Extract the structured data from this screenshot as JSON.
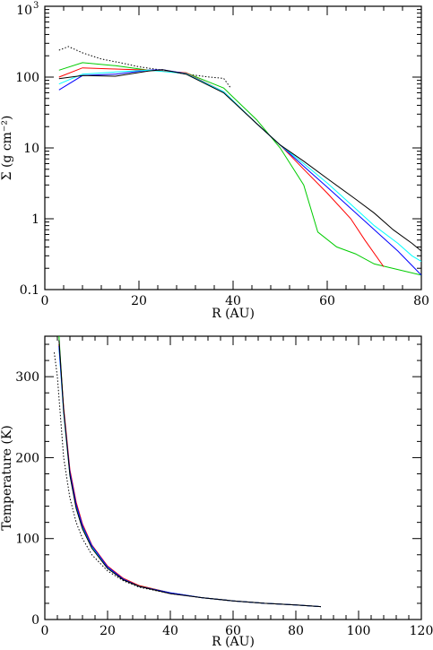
{
  "chart_data": [
    {
      "type": "line",
      "xlabel": "R (AU)",
      "ylabel": "Σ (g cm⁻²)",
      "xlim": [
        0,
        80
      ],
      "ylim": [
        0.1,
        1000
      ],
      "yscale": "log",
      "x_ticks": [
        0,
        20,
        40,
        60,
        80
      ],
      "y_ticks": [
        {
          "value": 0.1,
          "label": "0.1"
        },
        {
          "value": 1,
          "label": "1"
        },
        {
          "value": 10,
          "label": "10"
        },
        {
          "value": 100,
          "label": "100"
        },
        {
          "value": 1000,
          "label": "10",
          "sup": "3"
        }
      ],
      "series": [
        {
          "color": "#000000",
          "dashed": true,
          "x": [
            3,
            5,
            8,
            12,
            16,
            20,
            25,
            30,
            35,
            38,
            39.5
          ],
          "y": [
            240,
            270,
            220,
            180,
            160,
            140,
            125,
            110,
            100,
            96,
            70
          ]
        },
        {
          "color": "#00cc00",
          "x": [
            3,
            8,
            15,
            22,
            30,
            38,
            45,
            50,
            55,
            58,
            62,
            66,
            70,
            80
          ],
          "y": [
            125,
            160,
            145,
            125,
            115,
            70,
            25,
            10,
            3,
            0.65,
            0.4,
            0.32,
            0.23,
            0.16
          ]
        },
        {
          "color": "#ff0000",
          "x": [
            3,
            8,
            15,
            22,
            30,
            38,
            45,
            50,
            55,
            60,
            65,
            68,
            72
          ],
          "y": [
            100,
            135,
            130,
            125,
            115,
            62,
            22,
            11,
            5,
            2.3,
            1.0,
            0.5,
            0.21
          ]
        },
        {
          "color": "#0000ff",
          "x": [
            3,
            8,
            15,
            22,
            25,
            30,
            38,
            45,
            50,
            55,
            60,
            65,
            70,
            75,
            80
          ],
          "y": [
            66,
            105,
            110,
            125,
            127,
            112,
            62,
            22,
            11,
            5.5,
            2.8,
            1.4,
            0.7,
            0.35,
            0.16
          ]
        },
        {
          "color": "#00ffff",
          "x": [
            3,
            8,
            15,
            22,
            30,
            38,
            45,
            50,
            55,
            60,
            65,
            70,
            75,
            78,
            80
          ],
          "y": [
            80,
            110,
            118,
            125,
            112,
            62,
            22,
            11,
            6,
            3.2,
            1.6,
            0.8,
            0.45,
            0.3,
            0.25
          ]
        },
        {
          "color": "#000000",
          "x": [
            3,
            8,
            15,
            22,
            25,
            30,
            38,
            45,
            50,
            55,
            60,
            66,
            70,
            74,
            78,
            80
          ],
          "y": [
            95,
            105,
            103,
            122,
            127,
            110,
            60,
            22,
            11,
            6.5,
            3.7,
            1.9,
            1.2,
            0.7,
            0.45,
            0.35
          ]
        }
      ]
    },
    {
      "type": "line",
      "xlabel": "R (AU)",
      "ylabel": "Temperature (K)",
      "xlim": [
        0,
        120
      ],
      "ylim": [
        0,
        350
      ],
      "x_ticks": [
        0,
        20,
        40,
        60,
        80,
        100,
        120
      ],
      "y_ticks": [
        0,
        100,
        200,
        300
      ],
      "series": [
        {
          "color": "#000000",
          "dashed": true,
          "x": [
            3,
            4,
            5,
            6,
            8,
            10,
            12,
            15,
            20,
            25,
            30,
            40,
            50,
            60,
            70,
            80,
            88
          ],
          "y": [
            330,
            300,
            250,
            200,
            150,
            120,
            100,
            80,
            60,
            48,
            40,
            32,
            27,
            23,
            20,
            18,
            16
          ]
        },
        {
          "color": "#00cc00",
          "x": [
            4.5,
            5,
            6,
            8,
            10,
            12,
            15,
            20,
            25,
            30,
            40,
            50,
            60,
            70,
            80,
            88
          ],
          "y": [
            350,
            320,
            260,
            180,
            140,
            115,
            90,
            65,
            50,
            42,
            33,
            27,
            23,
            20,
            18,
            16
          ]
        },
        {
          "color": "#ff0000",
          "x": [
            4.5,
            5,
            6,
            8,
            10,
            12,
            15,
            20,
            25,
            30,
            40,
            50,
            60,
            70,
            80,
            88
          ],
          "y": [
            340,
            315,
            262,
            185,
            145,
            118,
            92,
            66,
            51,
            42,
            33,
            27,
            23,
            20,
            18,
            16
          ]
        },
        {
          "color": "#00ffff",
          "x": [
            4.5,
            5,
            6,
            8,
            10,
            12,
            15,
            20,
            25,
            30,
            40,
            50,
            60,
            70,
            80,
            88
          ],
          "y": [
            335,
            310,
            255,
            178,
            138,
            113,
            89,
            64,
            50,
            41,
            33,
            27,
            23,
            20,
            18,
            16
          ]
        },
        {
          "color": "#0000ff",
          "x": [
            4.5,
            5,
            6,
            8,
            10,
            12,
            15,
            20,
            25,
            30,
            40,
            50,
            60,
            70,
            80,
            88
          ],
          "y": [
            338,
            312,
            258,
            182,
            142,
            116,
            91,
            65,
            50,
            41,
            33,
            27,
            23,
            20,
            18,
            16
          ]
        },
        {
          "color": "#000000",
          "x": [
            4.5,
            5,
            6,
            8,
            10,
            12,
            15,
            20,
            25,
            30,
            40,
            50,
            60,
            70,
            80,
            88
          ],
          "y": [
            345,
            318,
            258,
            178,
            137,
            112,
            88,
            63,
            49,
            41,
            32,
            27,
            23,
            20,
            18,
            16
          ]
        }
      ]
    }
  ]
}
